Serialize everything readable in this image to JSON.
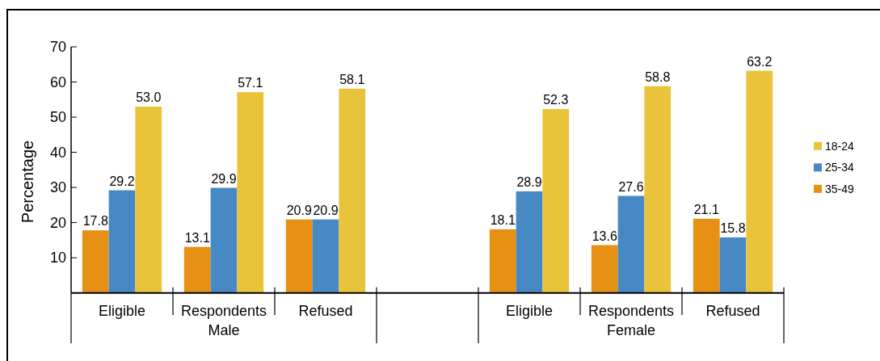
{
  "chart_data": {
    "type": "bar",
    "ylabel": "Percentage",
    "categories": [
      "Eligible",
      "Respondents",
      "Refused",
      null,
      "Eligible",
      "Respondents",
      "Refused"
    ],
    "series": [
      {
        "name": "35-49",
        "color": "#e69114",
        "values": [
          17.8,
          13.1,
          20.9,
          null,
          18.1,
          13.6,
          21.1
        ],
        "value_labels": [
          "17.8",
          "13.1",
          "20.9",
          null,
          "18.1",
          "13.6",
          "21.1"
        ]
      },
      {
        "name": "25-34",
        "color": "#4689c5",
        "values": [
          29.2,
          29.9,
          20.9,
          null,
          28.9,
          27.6,
          15.8
        ],
        "value_labels": [
          "29.2",
          "29.9",
          "20.9",
          null,
          "28.9",
          "27.6",
          "15.8"
        ]
      },
      {
        "name": "18-24",
        "color": "#e9c43a",
        "values": [
          53.0,
          57.1,
          58.1,
          null,
          52.3,
          58.8,
          63.2
        ],
        "value_labels": [
          "53.0",
          "57.1",
          "58.1",
          null,
          "52.3",
          "58.8",
          "63.2"
        ]
      }
    ],
    "ylim": [
      0,
      70
    ],
    "yticks": [
      10,
      20,
      30,
      40,
      50,
      60,
      70
    ],
    "legend": "right",
    "annotations": [
      "Male",
      "Female"
    ]
  }
}
